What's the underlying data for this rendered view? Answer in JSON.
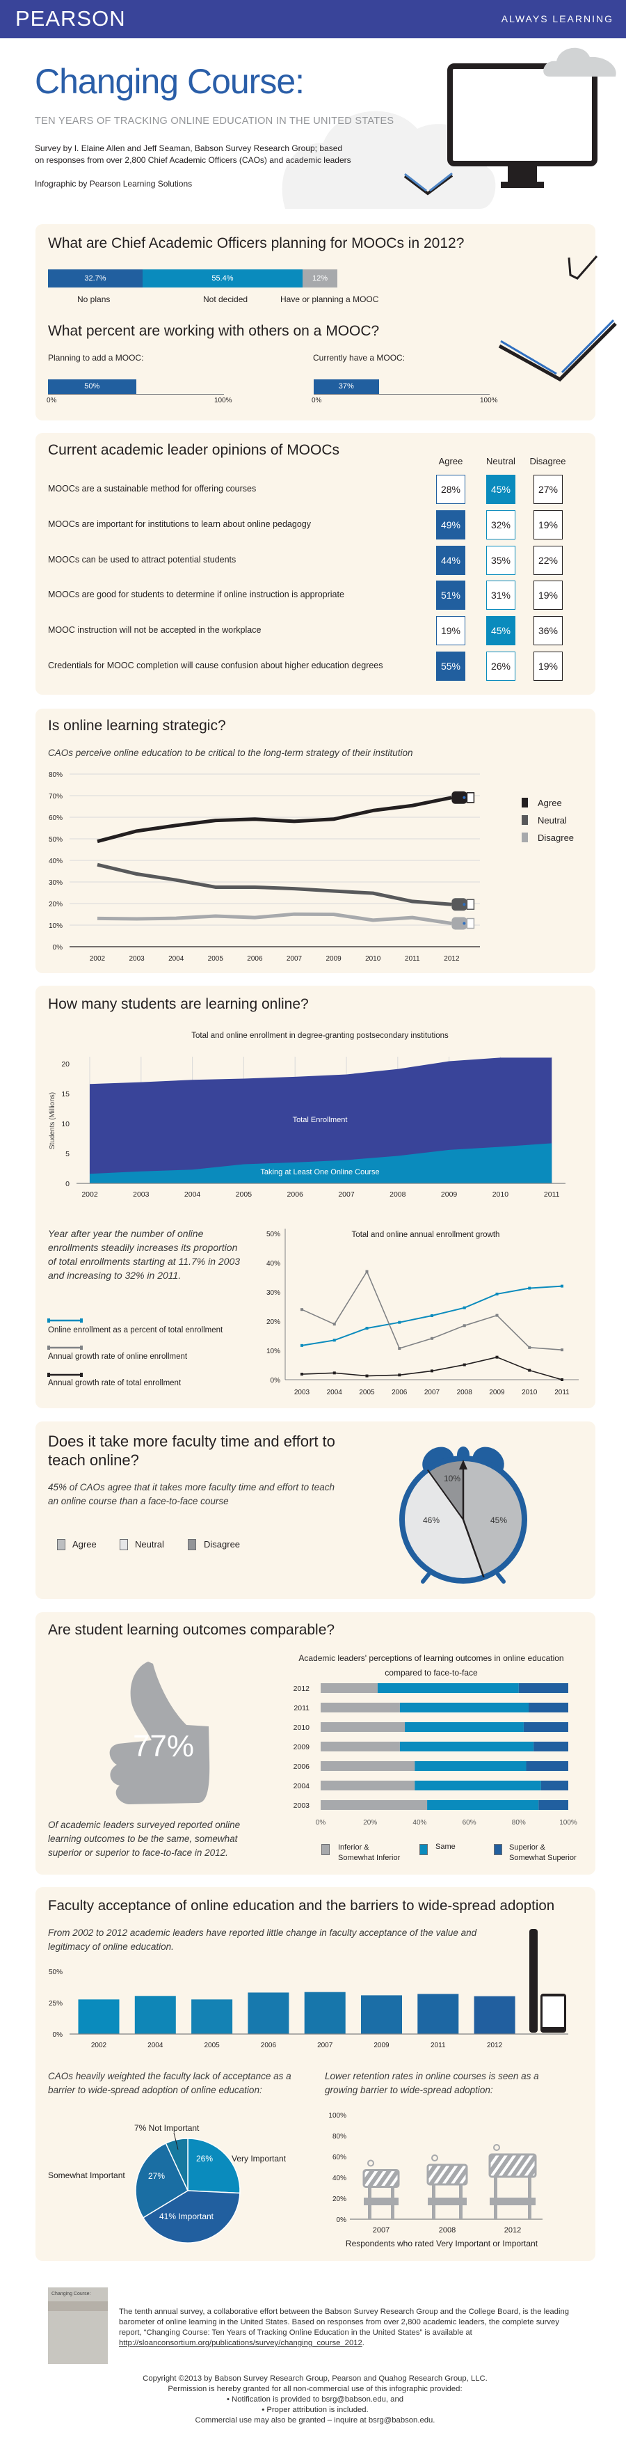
{
  "header": {
    "brand": "PEARSON",
    "tagline": "ALWAYS LEARNING"
  },
  "hero": {
    "title": "Changing Course:",
    "subtitle": "TEN YEARS OF TRACKING ONLINE EDUCATION IN THE UNITED STATES",
    "survey_line1": "Survey by I. Elaine Allen and Jeff Seaman, Babson Survey Research Group; based",
    "survey_line2": "on responses from over 2,800 Chief Academic Officers (CAOs) and academic leaders",
    "credit": "Infographic by Pearson Learning Solutions"
  },
  "colors": {
    "brand": "#394499",
    "dark_blue": "#215f9f",
    "teal": "#0a8bbd",
    "gray": "#a7a9ac",
    "card_bg": "#fbf5ea",
    "title_blue": "#2a5ea8"
  },
  "mooc_plans": {
    "title": "What are Chief Academic Officers planning for MOOCs in 2012?",
    "segments": [
      {
        "label": "No plans",
        "value": 32.7,
        "text": "32.7%",
        "color": "#215f9f"
      },
      {
        "label": "Not decided",
        "value": 55.4,
        "text": "55.4%",
        "color": "#0a8bbd"
      },
      {
        "label": "Have or planning a MOOC",
        "value": 12,
        "text": "12%",
        "color": "#a7a9ac"
      }
    ]
  },
  "mooc_partners": {
    "title": "What percent are working with others on a MOOC?",
    "items": [
      {
        "label": "Planning to add a MOOC:",
        "value": 50,
        "text": "50%"
      },
      {
        "label": "Currently have a MOOC:",
        "value": 37,
        "text": "37%"
      }
    ],
    "axis_min": "0%",
    "axis_max": "100%"
  },
  "opinions": {
    "title": "Current academic leader opinions of MOOCs",
    "columns": [
      "Agree",
      "Neutral",
      "Disagree"
    ],
    "rows": [
      {
        "statement": "MOOCs are a sustainable method for offering courses",
        "values": [
          "28%",
          "45%",
          "27%"
        ],
        "highlight": 1
      },
      {
        "statement": "MOOCs are important for institutions to learn about online pedagogy",
        "values": [
          "49%",
          "32%",
          "19%"
        ],
        "highlight": 0
      },
      {
        "statement": "MOOCs can be used to attract potential students",
        "values": [
          "44%",
          "35%",
          "22%"
        ],
        "highlight": 0
      },
      {
        "statement": "MOOCs are good for students to determine if online instruction is appropriate",
        "values": [
          "51%",
          "31%",
          "19%"
        ],
        "highlight": 0
      },
      {
        "statement": "MOOC instruction will not be accepted in the workplace",
        "values": [
          "19%",
          "45%",
          "36%"
        ],
        "highlight": 1
      },
      {
        "statement": "Credentials for MOOC completion will cause confusion about higher education degrees",
        "values": [
          "55%",
          "26%",
          "19%"
        ],
        "highlight": 0
      }
    ]
  },
  "strategic": {
    "title": "Is online learning strategic?",
    "subtitle": "CAOs perceive online education to be critical to the long-term strategy of  their institution"
  },
  "students": {
    "title": "How many students are learning online?",
    "paragraph": "Year after year the number of  online enrollments steadily increases its proportion of  total enrollments starting at 11.7% in 2003 and increasing to 32% in 2011.",
    "legend": [
      "Online enrollment as a percent of total enrollment",
      "Annual growth rate of online enrollment",
      "Annual growth rate of total enrollment"
    ]
  },
  "faculty_time": {
    "title": "Does it take more faculty time and effort to teach online?",
    "text": "45% of  CAOs agree that it takes more faculty time and effort to teach an online course than a face-to-face course"
  },
  "outcomes": {
    "title": "Are student learning outcomes comparable?",
    "big_stat": "77%",
    "text": "Of  academic leaders surveyed reported online learning outcomes to be the same, somewhat superior or superior to face-to-face in 2012."
  },
  "acceptance": {
    "title": "Faculty acceptance of online education and the barriers to wide-spread adoption",
    "text": "From 2002 to 2012 academic leaders have reported little change in faculty acceptance of  the value and legitimacy of  online education.",
    "left_text": "CAOs heavily weighted the faculty lack of  acceptance as a barrier to wide-spread adoption of  online education:",
    "right_text": "Lower retention rates in online courses is seen as a growing barrier to wide-spread adoption:"
  },
  "footer": {
    "cover_title": "Changing Course:",
    "about": "The tenth annual survey, a collaborative effort between the Babson Survey Research Group and the College Board, is the leading barometer of online learning in the United States.   Based on responses from over 2,800 academic leaders, the complete survey report, “Changing Course:  Ten Years of Tracking Online Education in the United States” is available at",
    "link": "http://sloanconsortium.org/publications/survey/changing_course_2012",
    "copyright": "Copyright ©2013 by Babson Survey Research Group, Pearson and Quahog Research Group, LLC.",
    "permission": "Permission is hereby granted for all non-commercial use of this infographic provided:",
    "bullet1": "•    Notification is provided to bsrg@babson.edu, and",
    "bullet2": "•    Proper attribution is included.",
    "commercial": "Commercial use may also be granted – inquire at bsrg@babson.edu."
  },
  "chart_data": [
    {
      "type": "line",
      "x": [
        "2002",
        "2003",
        "2004",
        "2005",
        "2006",
        "2007",
        "2009",
        "2010",
        "2011",
        "2012"
      ],
      "yticks": [
        "0%",
        "10%",
        "20%",
        "30%",
        "40%",
        "50%",
        "60%",
        "70%",
        "80%"
      ],
      "ylim": [
        0,
        80
      ],
      "grid": true,
      "legend": "right",
      "series": [
        {
          "name": "Agree",
          "color": "#231f20",
          "values": [
            48.8,
            53.6,
            56.2,
            58.5,
            59.1,
            58.1,
            59.1,
            63.1,
            65.4,
            69.1
          ]
        },
        {
          "name": "Neutral",
          "color": "#58595b",
          "values": [
            38.0,
            33.7,
            30.9,
            27.6,
            27.6,
            26.9,
            25.8,
            24.8,
            21.0,
            19.6
          ]
        },
        {
          "name": "Disagree",
          "color": "#a7a9ac",
          "values": [
            13.1,
            12.9,
            13.2,
            14.2,
            13.5,
            15.1,
            15.0,
            12.3,
            13.5,
            10.8
          ]
        }
      ]
    },
    {
      "type": "area",
      "title": "Total and online enrollment in degree-granting postsecondary institutions",
      "ylabel": "Students (Millions)",
      "x": [
        "2002",
        "2003",
        "2004",
        "2005",
        "2006",
        "2007",
        "2008",
        "2009",
        "2010",
        "2011"
      ],
      "yticks": [
        "0",
        "5",
        "10",
        "15",
        "20"
      ],
      "ylim": [
        0,
        21
      ],
      "series": [
        {
          "name": "Total Enrollment",
          "color": "#394499",
          "values": [
            16.6,
            16.9,
            17.3,
            17.5,
            17.8,
            18.2,
            19.1,
            20.4,
            21.0,
            21.0
          ]
        },
        {
          "name": "Taking at Least One Online Course",
          "color": "#0a8bbd",
          "values": [
            1.6,
            2.0,
            2.3,
            3.2,
            3.5,
            3.9,
            4.6,
            5.6,
            6.1,
            6.7
          ]
        }
      ]
    },
    {
      "type": "line",
      "title": "Total and online annual enrollment growth",
      "x": [
        "2003",
        "2004",
        "2005",
        "2006",
        "2007",
        "2008",
        "2009",
        "2010",
        "2011"
      ],
      "yticks": [
        "0%",
        "10%",
        "20%",
        "30%",
        "40%",
        "50%"
      ],
      "ylim": [
        0,
        50
      ],
      "series": [
        {
          "name": "Online enrollment as a percent of total enrollment",
          "color": "#0a8bbd",
          "values": [
            11.7,
            13.5,
            17.6,
            19.6,
            21.9,
            24.6,
            29.3,
            31.3,
            32.0
          ]
        },
        {
          "name": "Annual growth rate of online enrollment",
          "color": "#808285",
          "values": [
            24.0,
            19.0,
            37.0,
            10.7,
            14.1,
            18.5,
            22.0,
            11.0,
            10.2
          ]
        },
        {
          "name": "Annual growth rate of total enrollment",
          "color": "#231f20",
          "values": [
            1.9,
            2.3,
            1.3,
            1.6,
            3.0,
            5.1,
            7.7,
            3.2,
            0.0
          ]
        }
      ]
    },
    {
      "type": "pie",
      "legend": "bottom-left",
      "slices": [
        {
          "name": "Agree",
          "value": 45,
          "label": "45%",
          "color": "#bcbec0"
        },
        {
          "name": "Neutral",
          "value": 46,
          "label": "46%",
          "color": "#e6e7e8"
        },
        {
          "name": "Disagree",
          "value": 10,
          "label": "10%",
          "color": "#939598"
        }
      ]
    },
    {
      "type": "bar",
      "stacked": true,
      "orientation": "horizontal",
      "title": "Academic leaders' perceptions of learning outcomes in online education compared to face-to-face",
      "categories": [
        "2012",
        "2011",
        "2010",
        "2009",
        "2006",
        "2004",
        "2003"
      ],
      "xticks": [
        "0%",
        "20%",
        "40%",
        "60%",
        "80%",
        "100%"
      ],
      "xlim": [
        0,
        100
      ],
      "legend": "bottom",
      "series": [
        {
          "name": "Inferior & Somewhat Inferior",
          "color": "#a7a9ac",
          "values": [
            23,
            32,
            34,
            32,
            38,
            38,
            43
          ]
        },
        {
          "name": "Same",
          "color": "#0a8bbd",
          "values": [
            57,
            52,
            48,
            54,
            45,
            51,
            45
          ]
        },
        {
          "name": "Superior & Somewhat Superior",
          "color": "#215f9f",
          "values": [
            20,
            16,
            18,
            14,
            17,
            11,
            12
          ]
        }
      ]
    },
    {
      "type": "bar",
      "categories": [
        "2002",
        "2004",
        "2005",
        "2006",
        "2007",
        "2009",
        "2011",
        "2012"
      ],
      "values": [
        27.6,
        30.4,
        27.6,
        33.1,
        33.5,
        30.9,
        32.0,
        30.2
      ],
      "yticks": [
        "0%",
        "25%",
        "50%"
      ],
      "ylim": [
        0,
        50
      ]
    },
    {
      "type": "pie",
      "slices": [
        {
          "name": "Very Important",
          "value": 26,
          "label": "26%",
          "color": "#0a8bbd"
        },
        {
          "name": "Important",
          "value": 41,
          "label": "41% Important",
          "color": "#215f9f"
        },
        {
          "name": "Somewhat Important",
          "value": 27,
          "label": "27%",
          "color": "#1a6ea3"
        },
        {
          "name": "Not Important",
          "value": 7,
          "label": "7% Not Important",
          "color": "#16799f"
        }
      ]
    },
    {
      "type": "bar",
      "xlabel": "Respondents who rated Very Important or Important",
      "categories": [
        "2007",
        "2008",
        "2012"
      ],
      "values": [
        47,
        52,
        62
      ],
      "yticks": [
        "0%",
        "20%",
        "40%",
        "60%",
        "80%",
        "100%"
      ],
      "ylim": [
        0,
        100
      ]
    }
  ]
}
